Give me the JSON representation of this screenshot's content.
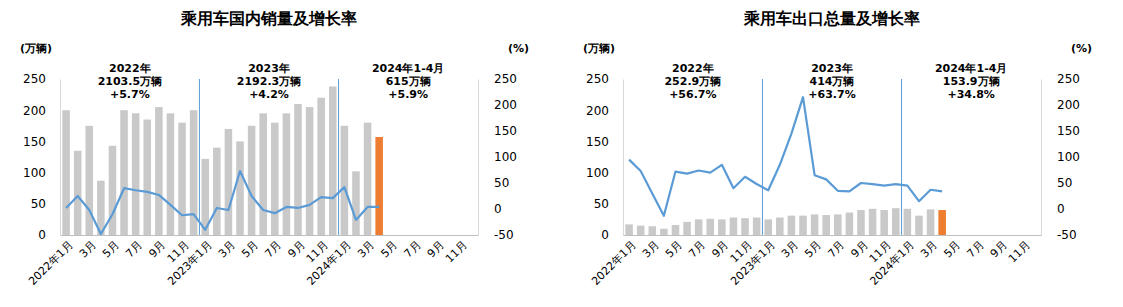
{
  "chart_data": [
    {
      "type": "bar",
      "title": "乘用车国内销量及增长率",
      "y_label": "(万辆)",
      "y2_label": "(%)",
      "categories": [
        "2022年1月",
        null,
        "3月",
        null,
        "5月",
        null,
        "7月",
        null,
        "9月",
        null,
        "11月",
        null,
        "2023年1月",
        null,
        "3月",
        null,
        "5月",
        null,
        "7月",
        null,
        "9月",
        null,
        "11月",
        null,
        "2024年1月",
        null,
        "3月",
        null,
        "5月",
        null,
        "7月",
        null,
        "9月",
        null,
        "11月",
        null
      ],
      "series": [
        {
          "type": "bar",
          "colors": [
            "#c9c9c9",
            "#c9c9c9",
            "#c9c9c9",
            "#c9c9c9",
            "#c9c9c9",
            "#c9c9c9",
            "#c9c9c9",
            "#c9c9c9",
            "#c9c9c9",
            "#c9c9c9",
            "#c9c9c9",
            "#c9c9c9",
            "#c9c9c9",
            "#c9c9c9",
            "#c9c9c9",
            "#c9c9c9",
            "#c9c9c9",
            "#c9c9c9",
            "#c9c9c9",
            "#c9c9c9",
            "#c9c9c9",
            "#c9c9c9",
            "#c9c9c9",
            "#c9c9c9",
            "#c9c9c9",
            "#c9c9c9",
            "#c9c9c9",
            "#ed7d31",
            "#c9c9c9",
            "#c9c9c9",
            "#c9c9c9",
            "#c9c9c9",
            "#c9c9c9",
            "#c9c9c9",
            "#c9c9c9",
            "#c9c9c9"
          ],
          "values": [
            200,
            135,
            175,
            87,
            143,
            200,
            195,
            185,
            205,
            195,
            180,
            200,
            122,
            140,
            170,
            150,
            175,
            195,
            180,
            195,
            210,
            205,
            220,
            238,
            175,
            102,
            180,
            157,
            null,
            null,
            null,
            null,
            null,
            null,
            null,
            null
          ]
        },
        {
          "type": "line",
          "color": "#5b9bd5",
          "axis": "y2",
          "values": [
            2,
            25,
            -2,
            -48,
            -10,
            40,
            36,
            33,
            27,
            8,
            -12,
            -10,
            -40,
            2,
            -2,
            73,
            25,
            -2,
            -8,
            4,
            2,
            8,
            23,
            21,
            42,
            -21,
            4,
            4,
            null,
            null,
            null,
            null,
            null,
            null,
            null,
            null
          ]
        }
      ],
      "ylim": [
        0,
        250
      ],
      "yticks": [
        0,
        50,
        100,
        150,
        200,
        250
      ],
      "y2lim": [
        -50,
        250
      ],
      "y2ticks": [
        -50,
        0,
        50,
        100,
        150,
        200,
        250
      ],
      "grid": false,
      "annotations": [
        {
          "text": [
            "2022年",
            "2103.5万辆",
            "+5.7%"
          ]
        },
        {
          "text": [
            "2023年",
            "2192.3万辆",
            "+4.2%"
          ]
        },
        {
          "text": [
            "2024年1-4月",
            "615万辆",
            "+5.9%"
          ]
        }
      ]
    },
    {
      "type": "bar",
      "title": "乘用车出口总量及增长率",
      "y_label": "(万辆)",
      "y2_label": "(%)",
      "categories": [
        "2022年1月",
        null,
        "3月",
        null,
        "5月",
        null,
        "7月",
        null,
        "9月",
        null,
        "11月",
        null,
        "2023年1月",
        null,
        "3月",
        null,
        "5月",
        null,
        "7月",
        null,
        "9月",
        null,
        "11月",
        null,
        "2024年1月",
        null,
        "3月",
        null,
        "5月",
        null,
        "7月",
        null,
        "9月",
        null,
        "11月",
        null
      ],
      "series": [
        {
          "type": "bar",
          "colors": [
            "#c9c9c9",
            "#c9c9c9",
            "#c9c9c9",
            "#c9c9c9",
            "#c9c9c9",
            "#c9c9c9",
            "#c9c9c9",
            "#c9c9c9",
            "#c9c9c9",
            "#c9c9c9",
            "#c9c9c9",
            "#c9c9c9",
            "#c9c9c9",
            "#c9c9c9",
            "#c9c9c9",
            "#c9c9c9",
            "#c9c9c9",
            "#c9c9c9",
            "#c9c9c9",
            "#c9c9c9",
            "#c9c9c9",
            "#c9c9c9",
            "#c9c9c9",
            "#c9c9c9",
            "#c9c9c9",
            "#c9c9c9",
            "#c9c9c9",
            "#ed7d31",
            "#c9c9c9",
            "#c9c9c9",
            "#c9c9c9",
            "#c9c9c9",
            "#c9c9c9",
            "#c9c9c9",
            "#c9c9c9",
            "#c9c9c9"
          ],
          "values": [
            17,
            15,
            14,
            10,
            16,
            21,
            25,
            26,
            25,
            28,
            27,
            28,
            25,
            28,
            31,
            31,
            33,
            32,
            33,
            36,
            40,
            42,
            40,
            43,
            42,
            31,
            41,
            40,
            null,
            null,
            null,
            null,
            null,
            null,
            null,
            null
          ]
        },
        {
          "type": "line",
          "color": "#5b9bd5",
          "axis": "y2",
          "values": [
            95,
            73,
            30,
            -13,
            72,
            68,
            74,
            70,
            85,
            40,
            62,
            48,
            36,
            85,
            145,
            215,
            65,
            57,
            35,
            34,
            50,
            48,
            45,
            48,
            45,
            15,
            37,
            34,
            null,
            null,
            null,
            null,
            null,
            null,
            null,
            null
          ]
        }
      ],
      "ylim": [
        0,
        250
      ],
      "yticks": [
        0,
        50,
        100,
        150,
        200,
        250
      ],
      "y2lim": [
        -50,
        250
      ],
      "y2ticks": [
        -50,
        0,
        50,
        100,
        150,
        200,
        250
      ],
      "grid": false,
      "annotations": [
        {
          "text": [
            "2022年",
            "252.9万辆",
            "+56.7%"
          ]
        },
        {
          "text": [
            "2023年",
            "414万辆",
            "+63.7%"
          ]
        },
        {
          "text": [
            "2024年1-4月",
            "153.9万辆",
            "+34.8%"
          ]
        }
      ]
    }
  ]
}
